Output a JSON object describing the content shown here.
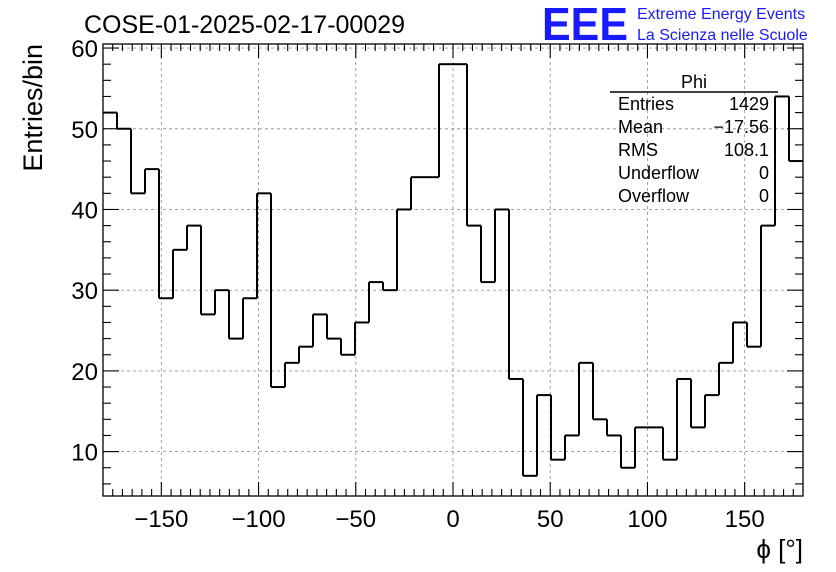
{
  "chart_data": {
    "type": "histogram",
    "title": "COSE-01-2025-02-17-00029",
    "xlabel": "ϕ [°]",
    "ylabel": "Entries/bin",
    "xlim": [
      -180,
      180
    ],
    "ylim": [
      4.5,
      60.5
    ],
    "bin_width": 7.2,
    "x_ticks": [
      -150,
      -100,
      -50,
      0,
      50,
      100,
      150
    ],
    "y_ticks": [
      10,
      20,
      30,
      40,
      50,
      60
    ],
    "grid": true,
    "bin_values": [
      52,
      50,
      42,
      45,
      29,
      35,
      38,
      27,
      30,
      24,
      29,
      42,
      18,
      21,
      23,
      27,
      24,
      22,
      26,
      31,
      30,
      40,
      44,
      44,
      58,
      58,
      38,
      31,
      40,
      19,
      7,
      17,
      9,
      12,
      21,
      14,
      12,
      8,
      13,
      13,
      9,
      19,
      13,
      17,
      21,
      26,
      23,
      38,
      54,
      46
    ],
    "stats_box": {
      "title": "Phi",
      "rows": [
        {
          "label": "Entries",
          "value": "1429"
        },
        {
          "label": "Mean",
          "value": "−17.56"
        },
        {
          "label": "RMS",
          "value": "108.1"
        },
        {
          "label": "Underflow",
          "value": "0"
        },
        {
          "label": "Overflow",
          "value": "0"
        }
      ]
    }
  },
  "logo": {
    "mark": "EEE",
    "line1": "Extreme Energy Events",
    "line2": "La Scienza nelle Scuole",
    "color": "#1a1aff"
  }
}
